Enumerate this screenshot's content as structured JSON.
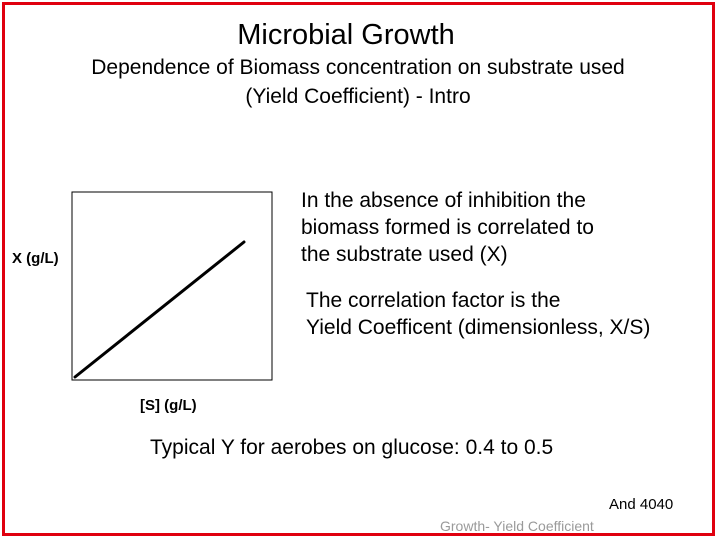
{
  "slide": {
    "title": "Microbial Growth",
    "subtitle_lines": [
      "Dependence of Biomass concentration on substrate used",
      "(Yield Coefficient) - Intro"
    ],
    "text_block_1": [
      "In the absence of inhibition the",
      "biomass formed is correlated to",
      "the substrate used (X)"
    ],
    "text_block_2": [
      "The correlation factor is the",
      "Yield Coefficent (dimensionless, X/S)"
    ],
    "typical_note": "Typical Y for aerobes on glucose: 0.4 to 0.5",
    "reference": "And 4040",
    "footer": "Growth- Yield Coefficient",
    "border_color": "#e0000f"
  },
  "chart_data": {
    "type": "line",
    "xlabel": "[S] (g/L)",
    "ylabel": "X (g/L)",
    "x": [
      0,
      1
    ],
    "y": [
      0,
      1
    ],
    "grid": false,
    "line_color": "#000000"
  }
}
